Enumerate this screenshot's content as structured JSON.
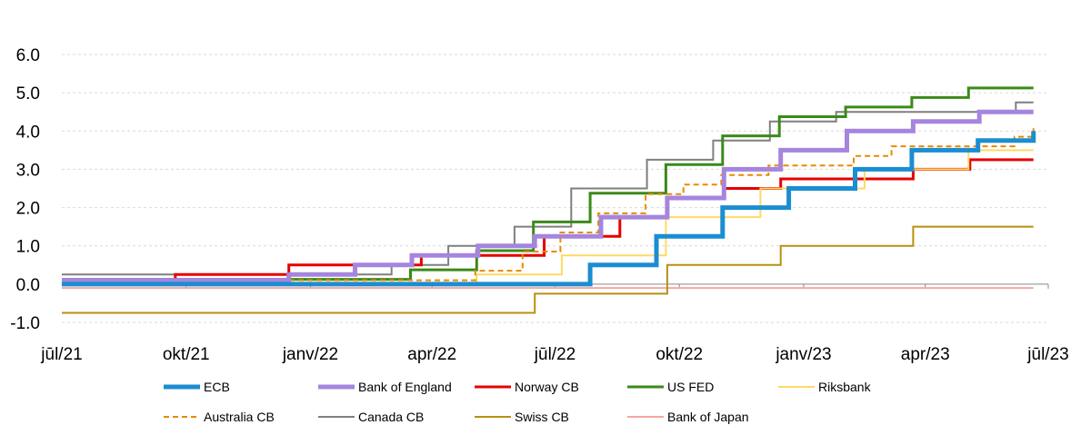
{
  "chart_data": {
    "type": "line",
    "title": "",
    "xlabel": "",
    "ylabel": "",
    "ylim": [
      -1.0,
      6.0
    ],
    "yticks": [
      "-1.0",
      "0.0",
      "1.0",
      "2.0",
      "3.0",
      "4.0",
      "5.0",
      "6.0"
    ],
    "xticks": [
      {
        "label": "jūl/21",
        "date": "2021-07-01"
      },
      {
        "label": "okt/21",
        "date": "2021-10-01"
      },
      {
        "label": "janv/22",
        "date": "2022-01-01"
      },
      {
        "label": "apr/22",
        "date": "2022-04-01"
      },
      {
        "label": "jūl/22",
        "date": "2022-07-01"
      },
      {
        "label": "okt/22",
        "date": "2022-10-01"
      },
      {
        "label": "janv/23",
        "date": "2023-01-01"
      },
      {
        "label": "apr/23",
        "date": "2023-04-01"
      },
      {
        "label": "jūl/23",
        "date": "2023-07-01"
      }
    ],
    "xlim": [
      "2021-07-01",
      "2023-07-01"
    ],
    "grid": "horizontal-dashed",
    "legend_position": "bottom",
    "series": [
      {
        "name": "Bank of Japan",
        "color": "#f4a7a3",
        "style": "solid",
        "width": 2,
        "points": [
          [
            "2021-07-01",
            -0.1
          ],
          [
            "2023-06-20",
            -0.1
          ]
        ]
      },
      {
        "name": "Swiss CB",
        "color": "#b8900f",
        "style": "solid",
        "width": 2,
        "points": [
          [
            "2021-07-01",
            -0.75
          ],
          [
            "2022-06-16",
            -0.25
          ],
          [
            "2022-09-22",
            0.5
          ],
          [
            "2022-12-15",
            1.0
          ],
          [
            "2023-03-23",
            1.5
          ],
          [
            "2023-06-20",
            1.5
          ]
        ]
      },
      {
        "name": "Canada CB",
        "color": "#7f7f7f",
        "style": "solid",
        "width": 2,
        "points": [
          [
            "2021-07-01",
            0.25
          ],
          [
            "2022-03-02",
            0.5
          ],
          [
            "2022-04-13",
            1.0
          ],
          [
            "2022-06-01",
            1.5
          ],
          [
            "2022-07-13",
            2.5
          ],
          [
            "2022-09-07",
            3.25
          ],
          [
            "2022-10-26",
            3.75
          ],
          [
            "2022-12-07",
            4.25
          ],
          [
            "2023-01-25",
            4.5
          ],
          [
            "2023-06-07",
            4.75
          ],
          [
            "2023-06-20",
            4.75
          ]
        ]
      },
      {
        "name": "US FED",
        "color": "#3b8a1a",
        "style": "solid",
        "width": 3,
        "points": [
          [
            "2021-07-01",
            0.125
          ],
          [
            "2022-03-16",
            0.375
          ],
          [
            "2022-05-04",
            0.875
          ],
          [
            "2022-06-15",
            1.625
          ],
          [
            "2022-07-27",
            2.375
          ],
          [
            "2022-09-21",
            3.125
          ],
          [
            "2022-11-02",
            3.875
          ],
          [
            "2022-12-14",
            4.375
          ],
          [
            "2023-02-01",
            4.625
          ],
          [
            "2023-03-22",
            4.875
          ],
          [
            "2023-05-03",
            5.125
          ],
          [
            "2023-06-20",
            5.125
          ]
        ]
      },
      {
        "name": "Norway CB",
        "color": "#e60000",
        "style": "solid",
        "width": 3,
        "points": [
          [
            "2021-07-01",
            0.0
          ],
          [
            "2021-09-23",
            0.25
          ],
          [
            "2021-12-16",
            0.5
          ],
          [
            "2022-03-24",
            0.75
          ],
          [
            "2022-06-23",
            1.25
          ],
          [
            "2022-08-18",
            1.75
          ],
          [
            "2022-09-22",
            2.25
          ],
          [
            "2022-11-03",
            2.5
          ],
          [
            "2022-12-15",
            2.75
          ],
          [
            "2023-03-23",
            3.0
          ],
          [
            "2023-05-04",
            3.25
          ],
          [
            "2023-06-20",
            3.25
          ]
        ]
      },
      {
        "name": "Riksbank",
        "color": "#ffd966",
        "style": "solid",
        "width": 2,
        "points": [
          [
            "2021-07-01",
            0.0
          ],
          [
            "2022-05-04",
            0.25
          ],
          [
            "2022-07-06",
            0.75
          ],
          [
            "2022-09-21",
            1.75
          ],
          [
            "2022-11-30",
            2.5
          ],
          [
            "2023-02-15",
            3.0
          ],
          [
            "2023-05-03",
            3.5
          ],
          [
            "2023-06-20",
            3.5
          ]
        ]
      },
      {
        "name": "Australia CB",
        "color": "#e88a00",
        "style": "dashed",
        "width": 2,
        "points": [
          [
            "2021-07-01",
            0.1
          ],
          [
            "2022-05-03",
            0.35
          ],
          [
            "2022-06-07",
            0.85
          ],
          [
            "2022-07-05",
            1.35
          ],
          [
            "2022-08-02",
            1.85
          ],
          [
            "2022-09-06",
            2.35
          ],
          [
            "2022-10-04",
            2.6
          ],
          [
            "2022-11-01",
            2.85
          ],
          [
            "2022-12-06",
            3.1
          ],
          [
            "2023-02-07",
            3.35
          ],
          [
            "2023-03-07",
            3.6
          ],
          [
            "2023-06-06",
            3.85
          ],
          [
            "2023-06-20",
            4.1
          ]
        ]
      },
      {
        "name": "Bank of England",
        "color": "#a585de",
        "style": "solid",
        "width": 5,
        "points": [
          [
            "2021-07-01",
            0.1
          ],
          [
            "2021-12-16",
            0.25
          ],
          [
            "2022-02-03",
            0.5
          ],
          [
            "2022-03-17",
            0.75
          ],
          [
            "2022-05-05",
            1.0
          ],
          [
            "2022-06-16",
            1.25
          ],
          [
            "2022-08-04",
            1.75
          ],
          [
            "2022-09-22",
            2.25
          ],
          [
            "2022-11-03",
            3.0
          ],
          [
            "2022-12-15",
            3.5
          ],
          [
            "2023-02-02",
            4.0
          ],
          [
            "2023-03-23",
            4.25
          ],
          [
            "2023-05-11",
            4.5
          ],
          [
            "2023-06-20",
            4.5
          ]
        ]
      },
      {
        "name": "ECB",
        "color": "#1b8dd1",
        "style": "solid",
        "width": 5,
        "points": [
          [
            "2021-07-01",
            0.0
          ],
          [
            "2022-07-27",
            0.5
          ],
          [
            "2022-09-14",
            1.25
          ],
          [
            "2022-11-02",
            2.0
          ],
          [
            "2022-12-21",
            2.5
          ],
          [
            "2023-02-08",
            3.0
          ],
          [
            "2023-03-22",
            3.5
          ],
          [
            "2023-05-10",
            3.75
          ],
          [
            "2023-06-20",
            4.0
          ]
        ]
      }
    ],
    "legend": [
      {
        "name": "ECB",
        "color": "#1b8dd1",
        "style": "solid",
        "width": 5
      },
      {
        "name": "Bank of England",
        "color": "#a585de",
        "style": "solid",
        "width": 5
      },
      {
        "name": "Norway CB",
        "color": "#e60000",
        "style": "solid",
        "width": 3
      },
      {
        "name": "US FED",
        "color": "#3b8a1a",
        "style": "solid",
        "width": 3
      },
      {
        "name": "Riksbank",
        "color": "#ffd966",
        "style": "solid",
        "width": 2
      },
      {
        "name": "Australia CB",
        "color": "#e88a00",
        "style": "dashed",
        "width": 2
      },
      {
        "name": "Canada CB",
        "color": "#7f7f7f",
        "style": "solid",
        "width": 2
      },
      {
        "name": "Swiss CB",
        "color": "#b8900f",
        "style": "solid",
        "width": 2
      },
      {
        "name": "Bank of Japan",
        "color": "#f4a7a3",
        "style": "solid",
        "width": 2
      }
    ]
  }
}
